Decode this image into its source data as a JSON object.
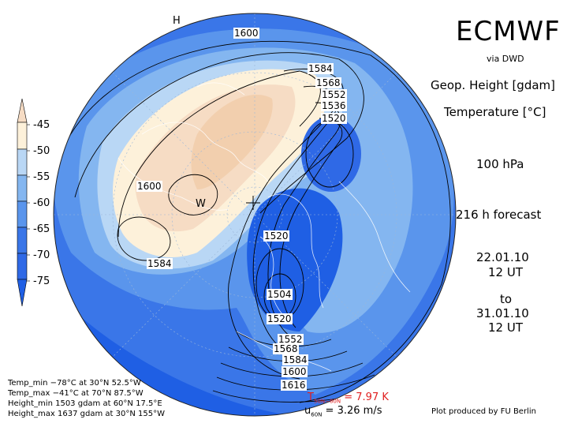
{
  "header": {
    "title": "ECMWF",
    "via": "via DWD",
    "param1": "Geop. Height [gdam]",
    "param2": "Temperature [°C]",
    "level": "100 hPa",
    "forecast": "216 h forecast",
    "init_date": "22.01.10",
    "init_time": "12 UT",
    "to": "to",
    "valid_date": "31.01.10",
    "valid_time": "12 UT"
  },
  "colorbar": {
    "labels": [
      "-45",
      "-50",
      "-55",
      "-60",
      "-65",
      "-70",
      "-75"
    ],
    "colors": [
      "#f6dcc4",
      "#fdf1da",
      "#b9d7f5",
      "#84b6f0",
      "#5a95ec",
      "#3a76e8",
      "#1f5fe4"
    ]
  },
  "stats": {
    "temp_min": "Temp_min −78°C at 30°N 52.5°W",
    "temp_max": "Temp_max −41°C at 70°N 87.5°W",
    "height_min": "Height_min 1503 gdam at 60°N 17.5°E",
    "height_max": "Height_max 1637 gdam at 30°N 155°W"
  },
  "indices": {
    "t_label": "T",
    "t_sub": "50N−80N",
    "t_value": "= 7.97 K",
    "u_label": "u",
    "u_sub": "60N",
    "u_value": "= 3.26 m/s"
  },
  "credit": "Plot produced by FU Berlin",
  "map": {
    "contour_labels": [
      "1600",
      "1584",
      "1568",
      "1552",
      "1536",
      "1520",
      "1600",
      "1584",
      "1520",
      "1504",
      "1520",
      "1552",
      "1568",
      "1584",
      "1600",
      "1616"
    ],
    "high_marker": "W",
    "pole_marker": "H",
    "colors": {
      "warm": "#f6dcc4",
      "warmer": "#f2cfae",
      "light": "#fdf1da",
      "pale_blue": "#b9d7f5",
      "mid_blue": "#84b6f0",
      "blue": "#5a95ec",
      "deep_blue": "#3a76e8",
      "darkest": "#1f5fe4"
    }
  }
}
